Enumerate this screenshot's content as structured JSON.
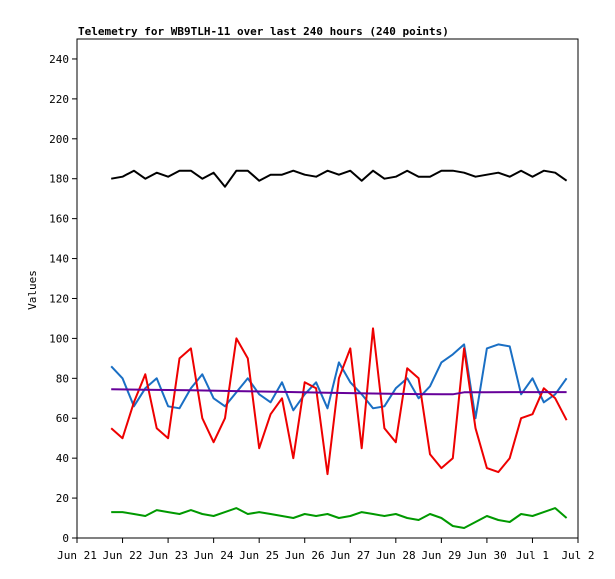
{
  "chart_data": {
    "type": "line",
    "title": "Telemetry for WB9TLH-11 over last 240 hours (240 points)",
    "xlabel": "",
    "ylabel": "Values",
    "ylim": [
      0,
      250
    ],
    "yticks": [
      0,
      20,
      40,
      60,
      80,
      100,
      120,
      140,
      160,
      180,
      200,
      220,
      240
    ],
    "xlim": [
      "Jun 21",
      "Jul 2"
    ],
    "xtick_labels": [
      "Jun 21",
      "Jun 22",
      "Jun 23",
      "Jun 24",
      "Jun 25",
      "Jun 26",
      "Jun 27",
      "Jun 28",
      "Jun 29",
      "Jun 30",
      "Jul 1",
      "Jul 2"
    ],
    "grid": false,
    "legend": "none",
    "colors": {
      "black": "#000000",
      "blue": "#1a6fc4",
      "red": "#ee0000",
      "purple": "#660099",
      "green": "#009900"
    },
    "series": [
      {
        "color": "black",
        "x": [
          21.75,
          22.0,
          22.25,
          22.5,
          22.75,
          23.0,
          23.25,
          23.5,
          23.75,
          24.0,
          24.25,
          24.5,
          24.75,
          25.0,
          25.25,
          25.5,
          25.75,
          26.0,
          26.25,
          26.5,
          26.75,
          27.0,
          27.25,
          27.5,
          27.75,
          28.0,
          28.25,
          28.5,
          28.75,
          29.0,
          29.25,
          29.5,
          29.75,
          30.0,
          30.25,
          30.5,
          30.75,
          31.0,
          31.25,
          31.5,
          31.75
        ],
        "values": [
          180,
          181,
          184,
          180,
          183,
          181,
          184,
          184,
          180,
          183,
          176,
          184,
          184,
          179,
          182,
          182,
          184,
          182,
          181,
          184,
          182,
          184,
          179,
          184,
          180,
          181,
          184,
          181,
          181,
          184,
          184,
          183,
          181,
          182,
          183,
          181,
          184,
          181,
          184,
          183,
          179
        ]
      },
      {
        "color": "blue",
        "x": [
          21.75,
          22.0,
          22.25,
          22.5,
          22.75,
          23.0,
          23.25,
          23.5,
          23.75,
          24.0,
          24.25,
          24.5,
          24.75,
          25.0,
          25.25,
          25.5,
          25.75,
          26.0,
          26.25,
          26.5,
          26.75,
          27.0,
          27.25,
          27.5,
          27.75,
          28.0,
          28.25,
          28.5,
          28.75,
          29.0,
          29.25,
          29.5,
          29.75,
          30.0,
          30.25,
          30.5,
          30.75,
          31.0,
          31.25,
          31.5,
          31.75
        ],
        "values": [
          86,
          80,
          66,
          75,
          80,
          66,
          65,
          75,
          82,
          70,
          66,
          73,
          80,
          72,
          68,
          78,
          64,
          72,
          78,
          65,
          88,
          78,
          72,
          65,
          66,
          75,
          80,
          70,
          76,
          88,
          92,
          97,
          60,
          95,
          97,
          96,
          72,
          80,
          68,
          72,
          80
        ]
      },
      {
        "color": "red",
        "x": [
          21.75,
          22.0,
          22.25,
          22.5,
          22.75,
          23.0,
          23.25,
          23.5,
          23.75,
          24.0,
          24.25,
          24.5,
          24.75,
          25.0,
          25.25,
          25.5,
          25.75,
          26.0,
          26.25,
          26.5,
          26.75,
          27.0,
          27.25,
          27.5,
          27.75,
          28.0,
          28.25,
          28.5,
          28.75,
          29.0,
          29.25,
          29.5,
          29.75,
          30.0,
          30.25,
          30.5,
          30.75,
          31.0,
          31.25,
          31.5,
          31.75
        ],
        "values": [
          55,
          50,
          68,
          82,
          55,
          50,
          90,
          95,
          60,
          48,
          60,
          100,
          90,
          45,
          62,
          70,
          40,
          78,
          75,
          32,
          80,
          95,
          45,
          105,
          55,
          48,
          85,
          80,
          42,
          35,
          40,
          95,
          55,
          35,
          33,
          40,
          60,
          62,
          75,
          70,
          59
        ]
      },
      {
        "color": "purple",
        "x": [
          21.75,
          22.5,
          23.5,
          24.5,
          25.5,
          26.5,
          27.5,
          28.5,
          29.0,
          29.25,
          29.5,
          30.0,
          30.5,
          31.0,
          31.5,
          31.75
        ],
        "values": [
          74.5,
          74.3,
          74.0,
          73.6,
          73.2,
          72.8,
          72.4,
          72.1,
          72.0,
          72.0,
          73.0,
          73.0,
          73.1,
          73.1,
          73.1,
          73.1
        ]
      },
      {
        "color": "green",
        "x": [
          21.75,
          22.0,
          22.25,
          22.5,
          22.75,
          23.0,
          23.25,
          23.5,
          23.75,
          24.0,
          24.25,
          24.5,
          24.75,
          25.0,
          25.25,
          25.5,
          25.75,
          26.0,
          26.25,
          26.5,
          26.75,
          27.0,
          27.25,
          27.5,
          27.75,
          28.0,
          28.25,
          28.5,
          28.75,
          29.0,
          29.25,
          29.5,
          29.75,
          30.0,
          30.25,
          30.5,
          30.75,
          31.0,
          31.25,
          31.5,
          31.75
        ],
        "values": [
          13,
          13,
          12,
          11,
          14,
          13,
          12,
          14,
          12,
          11,
          13,
          15,
          12,
          13,
          12,
          11,
          10,
          12,
          11,
          12,
          10,
          11,
          13,
          12,
          11,
          12,
          10,
          9,
          12,
          10,
          6,
          5,
          8,
          11,
          9,
          8,
          12,
          11,
          13,
          15,
          10
        ]
      }
    ]
  }
}
